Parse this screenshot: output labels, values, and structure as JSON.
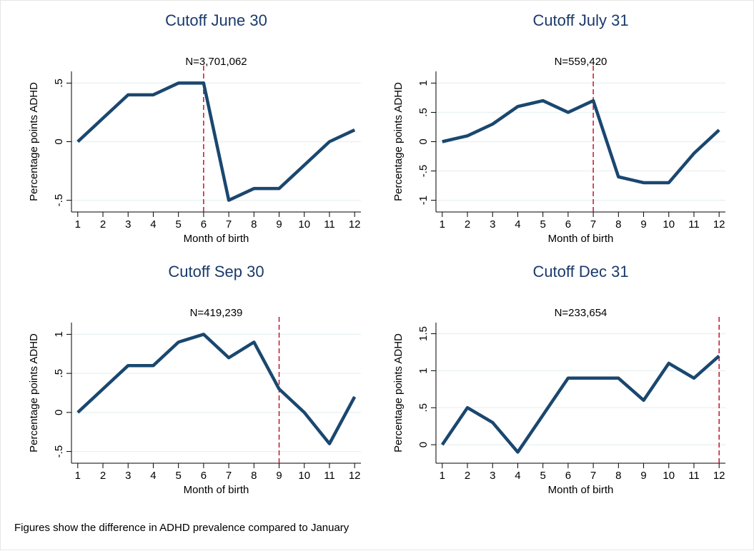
{
  "chart_data": [
    {
      "type": "line",
      "title": "Cutoff June 30",
      "subtitle": "N=3,701,062",
      "xlabel": "Month of birth",
      "ylabel": "Percentage points ADHD",
      "x": [
        1,
        2,
        3,
        4,
        5,
        6,
        7,
        8,
        9,
        10,
        11,
        12
      ],
      "values": [
        0,
        0.2,
        0.4,
        0.4,
        0.5,
        0.5,
        -0.5,
        -0.4,
        -0.4,
        -0.2,
        0,
        0.1
      ],
      "color": "#1a476f",
      "cutoff": 6,
      "cutoff_color": "#c4122f",
      "xlim": [
        0.75,
        12.25
      ],
      "xticks": [
        1,
        2,
        3,
        4,
        5,
        6,
        7,
        8,
        9,
        10,
        11,
        12
      ],
      "ylim": [
        -0.6,
        0.6
      ],
      "yticks": [
        {
          "value": -0.5,
          "label": "-.5"
        },
        0,
        {
          "value": 0.5,
          "label": ".5"
        }
      ],
      "grid": true
    },
    {
      "type": "line",
      "title": "Cutoff July 31",
      "subtitle": "N=559,420",
      "xlabel": "Month of birth",
      "ylabel": "Percentage points ADHD",
      "x": [
        1,
        2,
        3,
        4,
        5,
        6,
        7,
        8,
        9,
        10,
        11,
        12
      ],
      "values": [
        0,
        0.1,
        0.3,
        0.6,
        0.7,
        0.5,
        0.7,
        -0.6,
        -0.7,
        -0.7,
        -0.2,
        0.2
      ],
      "color": "#1a476f",
      "cutoff": 7,
      "cutoff_color": "#c4122f",
      "xlim": [
        0.75,
        12.25
      ],
      "xticks": [
        1,
        2,
        3,
        4,
        5,
        6,
        7,
        8,
        9,
        10,
        11,
        12
      ],
      "ylim": [
        -1.2,
        1.2
      ],
      "yticks": [
        -1,
        {
          "value": -0.5,
          "label": "-.5"
        },
        0,
        {
          "value": 0.5,
          "label": ".5"
        },
        1
      ],
      "grid": true
    },
    {
      "type": "line",
      "title": "Cutoff Sep 30",
      "subtitle": "N=419,239",
      "xlabel": "Month of birth",
      "ylabel": "Percentage points ADHD",
      "x": [
        1,
        2,
        3,
        4,
        5,
        6,
        7,
        8,
        9,
        10,
        11,
        12
      ],
      "values": [
        0,
        0.3,
        0.6,
        0.6,
        0.9,
        1.0,
        0.7,
        0.9,
        0.3,
        0,
        -0.4,
        0.2
      ],
      "color": "#1a476f",
      "cutoff": 9,
      "cutoff_color": "#c4122f",
      "xlim": [
        0.75,
        12.25
      ],
      "xticks": [
        1,
        2,
        3,
        4,
        5,
        6,
        7,
        8,
        9,
        10,
        11,
        12
      ],
      "ylim": [
        -0.65,
        1.15
      ],
      "yticks": [
        {
          "value": -0.5,
          "label": "-.5"
        },
        0,
        {
          "value": 0.5,
          "label": ".5"
        },
        1
      ],
      "grid": true
    },
    {
      "type": "line",
      "title": "Cutoff Dec 31",
      "subtitle": "N=233,654",
      "xlabel": "Month of birth",
      "ylabel": "Percentage points ADHD",
      "x": [
        1,
        2,
        3,
        4,
        5,
        6,
        7,
        8,
        9,
        10,
        11,
        12
      ],
      "values": [
        0,
        0.5,
        0.3,
        -0.1,
        0.4,
        0.9,
        0.9,
        0.9,
        0.6,
        1.1,
        0.9,
        1.2
      ],
      "color": "#1a476f",
      "cutoff": 12,
      "cutoff_color": "#c4122f",
      "xlim": [
        0.75,
        12.25
      ],
      "xticks": [
        1,
        2,
        3,
        4,
        5,
        6,
        7,
        8,
        9,
        10,
        11,
        12
      ],
      "ylim": [
        -0.25,
        1.65
      ],
      "yticks": [
        0,
        {
          "value": 0.5,
          "label": ".5"
        },
        1,
        {
          "value": 1.5,
          "label": "1.5"
        }
      ],
      "grid": true
    }
  ],
  "caption": "Figures show the difference in ADHD prevalence compared to January"
}
